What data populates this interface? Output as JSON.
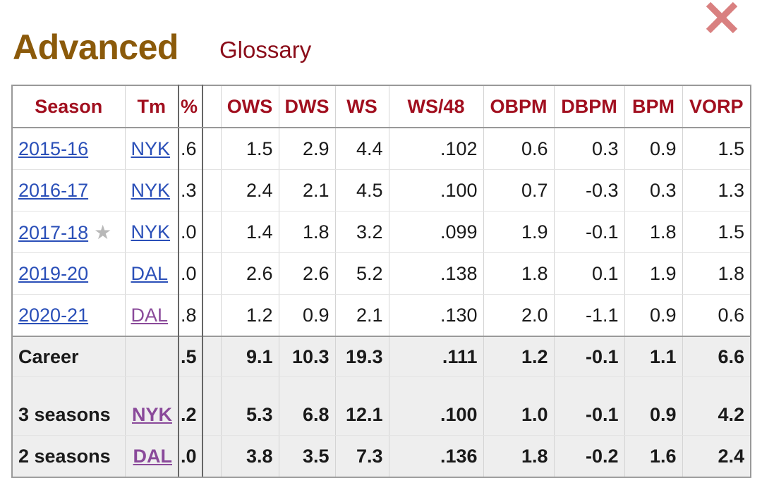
{
  "header": {
    "title": "Advanced",
    "glossary_label": "Glossary"
  },
  "table": {
    "columns": {
      "season": "Season",
      "team": "Tm",
      "clipped": "%",
      "ows": "OWS",
      "dws": "DWS",
      "ws": "WS",
      "ws48": "WS/48",
      "obpm": "OBPM",
      "dbpm": "DBPM",
      "bpm": "BPM",
      "vorp": "VORP"
    },
    "rows": [
      {
        "season": "2015-16",
        "team": "NYK",
        "clipped": ".6",
        "ows": "1.5",
        "dws": "2.9",
        "ws": "4.4",
        "ws48": ".102",
        "obpm": "0.6",
        "dbpm": "0.3",
        "bpm": "0.9",
        "vorp": "1.5"
      },
      {
        "season": "2016-17",
        "team": "NYK",
        "clipped": ".3",
        "ows": "2.4",
        "dws": "2.1",
        "ws": "4.5",
        "ws48": ".100",
        "obpm": "0.7",
        "dbpm": "-0.3",
        "bpm": "0.3",
        "vorp": "1.3"
      },
      {
        "season": "2017-18",
        "team": "NYK",
        "clipped": ".0",
        "ows": "1.4",
        "dws": "1.8",
        "ws": "3.2",
        "ws48": ".099",
        "obpm": "1.9",
        "dbpm": "-0.1",
        "bpm": "1.8",
        "vorp": "1.5",
        "star": "★"
      },
      {
        "season": "2019-20",
        "team": "DAL",
        "clipped": ".0",
        "ows": "2.6",
        "dws": "2.6",
        "ws": "5.2",
        "ws48": ".138",
        "obpm": "1.8",
        "dbpm": "0.1",
        "bpm": "1.9",
        "vorp": "1.8"
      },
      {
        "season": "2020-21",
        "team": "DAL",
        "clipped": ".8",
        "ows": "1.2",
        "dws": "0.9",
        "ws": "2.1",
        "ws48": ".130",
        "obpm": "2.0",
        "dbpm": "-1.1",
        "bpm": "0.9",
        "vorp": "0.6"
      }
    ],
    "totals": [
      {
        "label": "Career",
        "team": "",
        "clipped": ".5",
        "ows": "9.1",
        "dws": "10.3",
        "ws": "19.3",
        "ws48": ".111",
        "obpm": "1.2",
        "dbpm": "-0.1",
        "bpm": "1.1",
        "vorp": "6.6"
      },
      {
        "label": "3 seasons",
        "team": "NYK",
        "clipped": ".2",
        "ows": "5.3",
        "dws": "6.8",
        "ws": "12.1",
        "ws48": ".100",
        "obpm": "1.0",
        "dbpm": "-0.1",
        "bpm": "0.9",
        "vorp": "4.2"
      },
      {
        "label": "2 seasons",
        "team": "DAL",
        "clipped": ".0",
        "ows": "3.8",
        "dws": "3.5",
        "ws": "7.3",
        "ws48": ".136",
        "obpm": "1.8",
        "dbpm": "-0.2",
        "bpm": "1.6",
        "vorp": "2.4"
      }
    ]
  },
  "colors": {
    "title": "#8b5a0a",
    "header_text": "#a10f1f",
    "link": "#2a4fb8",
    "visited_link": "#8a4a9a",
    "close_icon": "#d98080"
  },
  "icons": {
    "close": "close-icon",
    "star": "star-icon"
  }
}
